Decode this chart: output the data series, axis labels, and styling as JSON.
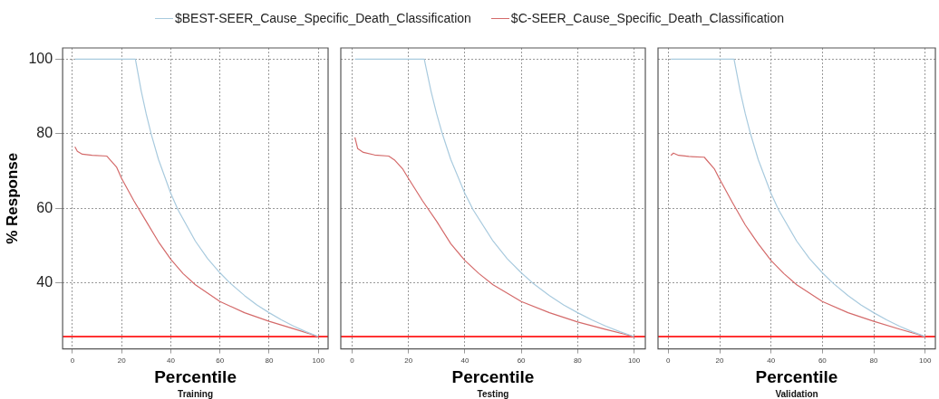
{
  "chart_data": [
    {
      "type": "line",
      "xlabel": "Percentile",
      "ylabel": "% Response",
      "annotations": [
        "Training"
      ],
      "legend": "top",
      "grid": true,
      "xlim": [
        -4,
        104
      ],
      "ylim": [
        22.3,
        103
      ],
      "xticks": [
        0,
        20,
        40,
        60,
        80,
        100
      ],
      "yticks": [
        40,
        60,
        80,
        100
      ],
      "ref_lines": [
        {
          "axis": "y",
          "value": 25.6,
          "color": "#ff3333"
        }
      ],
      "series": [
        {
          "name": "$BEST-SEER_Cause_Specific_Death_Classification",
          "color": "#a8cade",
          "x": [
            1,
            10,
            20,
            25.6,
            28,
            30,
            32,
            35,
            40,
            43,
            50,
            55,
            60,
            64,
            70,
            75,
            80,
            85,
            90,
            95,
            100
          ],
          "values": [
            100,
            100,
            100,
            100,
            91.4,
            85.3,
            80,
            73.1,
            64,
            59.5,
            51.2,
            46.5,
            42.7,
            40,
            36.6,
            34.1,
            32,
            30.1,
            28.4,
            26.9,
            25.6
          ]
        },
        {
          "name": "$C-SEER_Cause_Specific_Death_Classification",
          "color": "#d46a6a",
          "x": [
            1,
            2,
            4,
            8,
            14,
            18,
            20,
            25,
            30,
            35,
            40,
            45,
            50,
            60,
            70,
            80,
            90,
            100
          ],
          "values": [
            76.5,
            75.3,
            74.5,
            74.2,
            74,
            71,
            68,
            62,
            56.5,
            51,
            46.3,
            42.5,
            39.5,
            35,
            32,
            29.7,
            27.7,
            25.6
          ]
        }
      ]
    },
    {
      "type": "line",
      "xlabel": "Percentile",
      "annotations": [
        "Testing"
      ],
      "grid": true,
      "tick_labels": "x",
      "xlim": [
        -4,
        104
      ],
      "ylim": [
        22.3,
        103
      ],
      "xticks": [
        0,
        20,
        40,
        60,
        80,
        100
      ],
      "yticks": [
        40,
        60,
        80,
        100
      ],
      "ref_lines": [
        {
          "axis": "y",
          "value": 25.6,
          "color": "#ff3333"
        }
      ],
      "series": [
        {
          "color": "#a8cade",
          "x": [
            1,
            10,
            20,
            25.6,
            28,
            30,
            32,
            35,
            40,
            43,
            50,
            55,
            60,
            64,
            70,
            75,
            80,
            85,
            90,
            95,
            100
          ],
          "values": [
            100,
            100,
            100,
            100,
            91.4,
            85.3,
            80,
            73.1,
            64,
            59.5,
            51.2,
            46.5,
            42.7,
            40,
            36.6,
            34.1,
            32,
            30.1,
            28.4,
            26.9,
            25.6
          ]
        },
        {
          "color": "#d46a6a",
          "x": [
            1,
            2,
            4,
            8,
            13,
            15,
            18,
            20,
            25,
            30,
            35,
            40,
            45,
            50,
            60,
            70,
            80,
            90,
            100
          ],
          "values": [
            79,
            76,
            75,
            74.3,
            74,
            73,
            70.5,
            68,
            62,
            56.5,
            50.5,
            46,
            42.5,
            39.5,
            35,
            32,
            29.5,
            27.5,
            25.6
          ]
        }
      ]
    },
    {
      "type": "line",
      "xlabel": "Percentile",
      "annotations": [
        "Validation"
      ],
      "grid": true,
      "tick_labels": "x",
      "xlim": [
        -4,
        104
      ],
      "ylim": [
        22.3,
        103
      ],
      "xticks": [
        0,
        20,
        40,
        60,
        80,
        100
      ],
      "yticks": [
        40,
        60,
        80,
        100
      ],
      "ref_lines": [
        {
          "axis": "y",
          "value": 25.6,
          "color": "#ff3333"
        }
      ],
      "series": [
        {
          "color": "#a8cade",
          "x": [
            1,
            10,
            20,
            25.6,
            28,
            30,
            32,
            35,
            40,
            43,
            50,
            55,
            60,
            64,
            70,
            75,
            80,
            85,
            90,
            95,
            100
          ],
          "values": [
            100,
            100,
            100,
            100,
            91.4,
            85.3,
            80,
            73.1,
            64,
            59.5,
            51.2,
            46.5,
            42.7,
            40,
            36.6,
            34.1,
            32,
            30.1,
            28.4,
            26.9,
            25.6
          ]
        },
        {
          "color": "#d46a6a",
          "x": [
            1,
            2,
            4,
            8,
            14,
            18,
            20,
            25,
            30,
            35,
            40,
            45,
            50,
            60,
            70,
            80,
            90,
            100
          ],
          "values": [
            74.2,
            74.8,
            74.2,
            73.9,
            73.7,
            70.5,
            67.8,
            61.5,
            55.5,
            50.5,
            46,
            42.5,
            39.5,
            35,
            32,
            29.7,
            27.6,
            25.6
          ]
        }
      ]
    }
  ]
}
